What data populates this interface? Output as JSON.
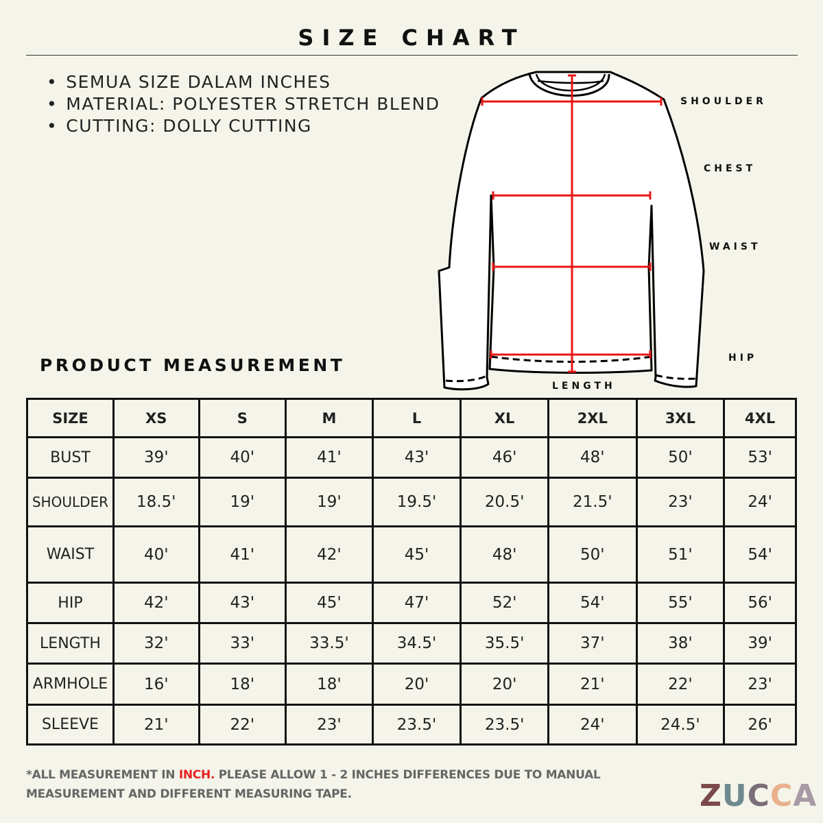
{
  "title": "SIZE CHART",
  "notes": [
    "SEMUA SIZE DALAM INCHES",
    "MATERIAL: POLYESTER STRETCH BLEND",
    "CUTTING: DOLLY CUTTING"
  ],
  "diagram": {
    "labels": {
      "shoulder": "SHOULDER",
      "chest": "CHEST",
      "waist": "WAIST",
      "hip": "HIP",
      "length": "LENGTH"
    },
    "measure_color": "#e81515"
  },
  "section_title": "PRODUCT MEASUREMENT",
  "table": {
    "headers": [
      "SIZE",
      "XS",
      "S",
      "M",
      "L",
      "XL",
      "2XL",
      "3XL",
      "4XL"
    ],
    "rows": [
      {
        "label": "BUST",
        "values": [
          "39'",
          "40'",
          "41'",
          "43'",
          "46'",
          "48'",
          "50'",
          "53'"
        ]
      },
      {
        "label": "SHOULDER",
        "values": [
          "18.5'",
          "19'",
          "19'",
          "19.5'",
          "20.5'",
          "21.5'",
          "23'",
          "24'"
        ]
      },
      {
        "label": "WAIST",
        "values": [
          "40'",
          "41'",
          "42'",
          "45'",
          "48'",
          "50'",
          "51'",
          "54'"
        ]
      },
      {
        "label": "HIP",
        "values": [
          "42'",
          "43'",
          "45'",
          "47'",
          "52'",
          "54'",
          "55'",
          "56'"
        ]
      },
      {
        "label": "LENGTH",
        "values": [
          "32'",
          "33'",
          "33.5'",
          "34.5'",
          "35.5'",
          "37'",
          "38'",
          "39'"
        ]
      },
      {
        "label": "ARMHOLE",
        "values": [
          "16'",
          "18'",
          "18'",
          "20'",
          "20'",
          "21'",
          "22'",
          "23'"
        ]
      },
      {
        "label": "SLEEVE",
        "values": [
          "21'",
          "22'",
          "23'",
          "23.5'",
          "23.5'",
          "24'",
          "24.5'",
          "26'"
        ]
      }
    ]
  },
  "footer": {
    "pre": "*ALL MEASUREMENT IN ",
    "highlight": "INCH.",
    "post": " PLEASE ALLOW 1 - 2 INCHES DIFFERENCES DUE TO MANUAL",
    "line2": "MEASUREMENT AND DIFFERENT MEASURING TAPE.",
    "highlight_color": "#e52222"
  },
  "logo": {
    "text": "ZUCCA",
    "colors": [
      "#7a4a4a",
      "#6e8a8f",
      "#7a6e78",
      "#e8b08c",
      "#a89aa5"
    ]
  }
}
